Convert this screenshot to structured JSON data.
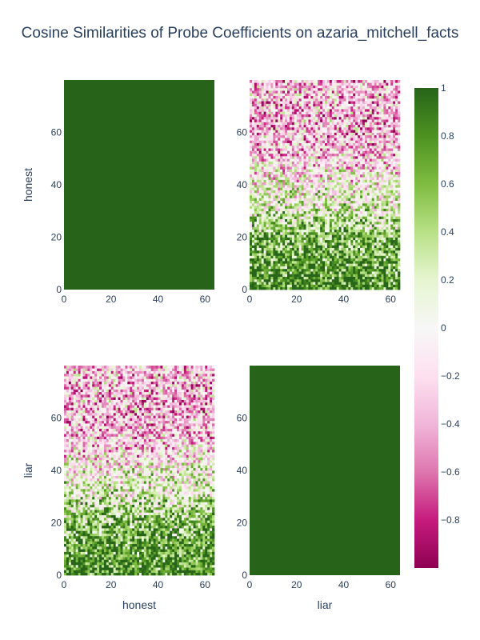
{
  "chart_data": {
    "type": "heatmap",
    "title": "Cosine Similarities of Probe Coefficients on azaria_mitchell_facts",
    "row_labels": [
      "honest",
      "liar"
    ],
    "col_labels": [
      "honest",
      "liar"
    ],
    "x_range": [
      0,
      64
    ],
    "y_range": [
      0,
      80
    ],
    "x_ticks": [
      0,
      20,
      40,
      60
    ],
    "y_ticks": [
      0,
      20,
      40,
      60
    ],
    "grid": "off",
    "colorscale": "PiYG",
    "zrange": [
      -1,
      1
    ],
    "colorbar_ticks": [
      "1",
      "0.8",
      "0.6",
      "0.4",
      "0.2",
      "0",
      "−0.2",
      "−0.4",
      "−0.6",
      "−0.8"
    ],
    "colorbar_tick_values": [
      1,
      0.8,
      0.6,
      0.4,
      0.2,
      0,
      -0.2,
      -0.4,
      -0.6,
      -0.8
    ],
    "panels": [
      {
        "row": "honest",
        "col": "honest",
        "pattern": "uniform",
        "value": 1.0
      },
      {
        "row": "honest",
        "col": "liar",
        "pattern": "gradient_noisy",
        "mean_by_y": [
          [
            0,
            0.85
          ],
          [
            10,
            0.75
          ],
          [
            20,
            0.55
          ],
          [
            30,
            0.25
          ],
          [
            40,
            0.05
          ],
          [
            50,
            -0.2
          ],
          [
            60,
            -0.35
          ],
          [
            70,
            -0.3
          ],
          [
            80,
            -0.25
          ]
        ]
      },
      {
        "row": "liar",
        "col": "honest",
        "pattern": "gradient_noisy",
        "mean_by_y": [
          [
            0,
            0.85
          ],
          [
            10,
            0.75
          ],
          [
            20,
            0.55
          ],
          [
            30,
            0.25
          ],
          [
            40,
            0.05
          ],
          [
            50,
            -0.2
          ],
          [
            60,
            -0.35
          ],
          [
            70,
            -0.3
          ],
          [
            80,
            -0.25
          ]
        ]
      },
      {
        "row": "liar",
        "col": "liar",
        "pattern": "uniform",
        "value": 1.0
      }
    ]
  }
}
